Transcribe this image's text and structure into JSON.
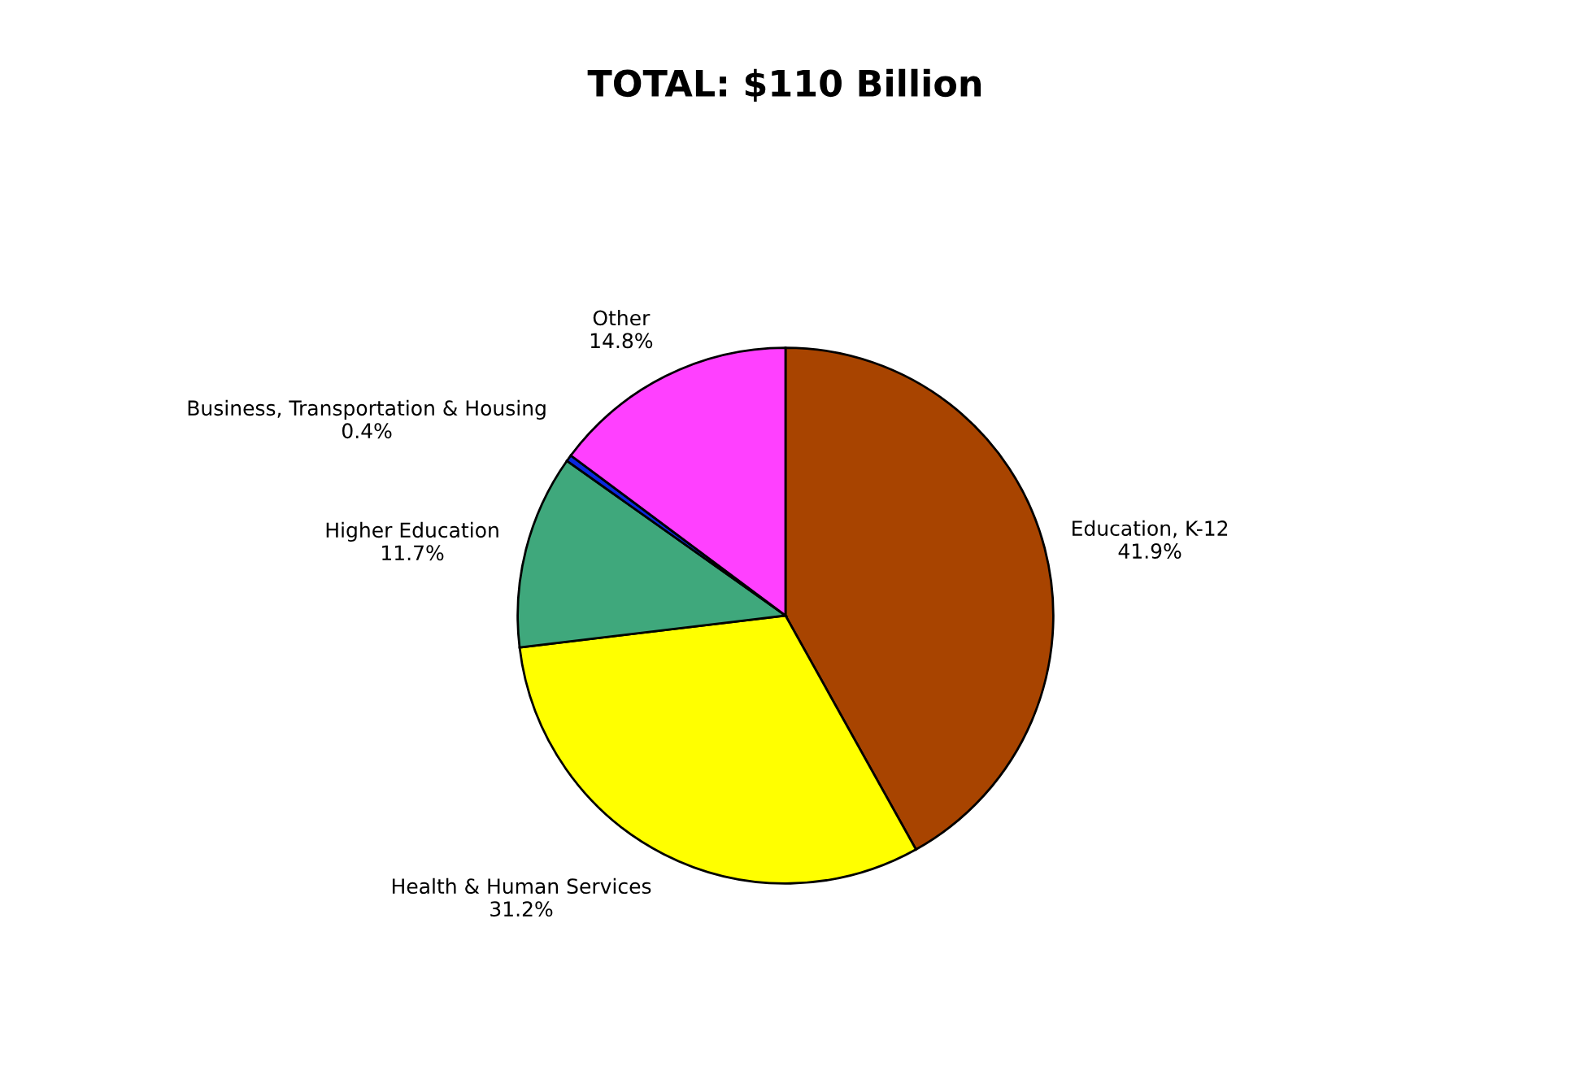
{
  "chart_data": {
    "type": "pie",
    "title": "TOTAL: $110 Billion",
    "categories": [
      "Education, K-12",
      "Health & Human Services",
      "Higher Education",
      "Business, Transportation & Housing",
      "Other"
    ],
    "values": [
      41.9,
      31.2,
      11.7,
      0.4,
      14.8
    ],
    "value_labels": [
      "41.9%",
      "31.2%",
      "11.7%",
      "0.4%",
      "14.8%"
    ],
    "colors": [
      "#a84400",
      "#ffff00",
      "#3fa87c",
      "#0a28e0",
      "#ff40ff"
    ],
    "legend": false
  }
}
